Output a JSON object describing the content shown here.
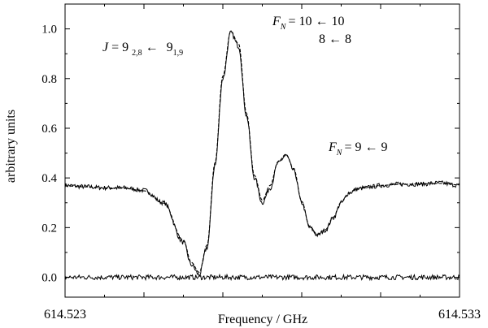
{
  "chart_data": {
    "type": "line",
    "title": "",
    "xlabel": "Frequency / GHz",
    "ylabel": "arbitrary units",
    "xlim": [
      614.523,
      614.533
    ],
    "ylim": [
      -0.08,
      1.1
    ],
    "x_tick_labels": [
      "614.523",
      "614.533"
    ],
    "y_ticks": [
      0.0,
      0.2,
      0.4,
      0.6,
      0.8,
      1.0
    ],
    "y_tick_labels": [
      "0.0",
      "0.2",
      "0.4",
      "0.6",
      "0.8",
      "1.0"
    ],
    "grid": false,
    "legend": "none",
    "annotations": {
      "transition": {
        "prefix": "J = 9",
        "upper_sub": "2,8",
        "arrow": "←",
        "lower": "9",
        "lower_sub": "1,9"
      },
      "main_peak": {
        "label_F": "F",
        "label_sub": "N",
        "line1": "= 10 ← 10",
        "line2": "8 ← 8"
      },
      "second_peak": {
        "label_F": "F",
        "label_sub": "N",
        "text": "= 9 ←  9"
      }
    },
    "series": [
      {
        "style": "solid",
        "x": [
          614.523,
          614.5235,
          614.524,
          614.5245,
          614.525,
          614.5255,
          614.526,
          614.5262,
          614.5264,
          614.5266,
          614.5268,
          614.527,
          614.5272,
          614.5274,
          614.5276,
          614.5278,
          614.528,
          614.5282,
          614.5284,
          614.5286,
          614.5288,
          614.529,
          614.5292,
          614.5294,
          614.5296,
          614.5298,
          614.53,
          614.5302,
          614.5304,
          614.5306,
          614.5308,
          614.531,
          614.5315,
          614.532,
          614.5325,
          614.533
        ],
        "y": [
          0.37,
          0.365,
          0.36,
          0.36,
          0.35,
          0.3,
          0.14,
          0.05,
          0.01,
          0.12,
          0.45,
          0.8,
          0.985,
          0.93,
          0.65,
          0.4,
          0.3,
          0.36,
          0.46,
          0.49,
          0.43,
          0.3,
          0.2,
          0.17,
          0.19,
          0.24,
          0.3,
          0.34,
          0.355,
          0.36,
          0.365,
          0.37,
          0.375,
          0.375,
          0.38,
          0.37
        ]
      },
      {
        "style": "dashed",
        "x": [
          614.523,
          614.5235,
          614.524,
          614.5245,
          614.525,
          614.5255,
          614.526,
          614.5262,
          614.5264,
          614.5266,
          614.5268,
          614.527,
          614.5272,
          614.5274,
          614.5276,
          614.5278,
          614.528,
          614.5282,
          614.5284,
          614.5286,
          614.5288,
          614.529,
          614.5292,
          614.5294,
          614.5296,
          614.5298,
          614.53,
          614.5302,
          614.5304,
          614.5306,
          614.5308,
          614.531,
          614.5315,
          614.532,
          614.5325,
          614.533
        ],
        "y": [
          0.368,
          0.364,
          0.36,
          0.358,
          0.348,
          0.298,
          0.15,
          0.06,
          0.02,
          0.13,
          0.46,
          0.81,
          0.99,
          0.94,
          0.66,
          0.41,
          0.31,
          0.37,
          0.465,
          0.495,
          0.435,
          0.305,
          0.205,
          0.172,
          0.192,
          0.242,
          0.302,
          0.34,
          0.355,
          0.36,
          0.365,
          0.37,
          0.374,
          0.376,
          0.378,
          0.372
        ]
      },
      {
        "style": "solid",
        "x": [
          614.523,
          614.533
        ],
        "y": [
          0.0,
          0.0
        ],
        "noise": 0.01
      }
    ]
  }
}
